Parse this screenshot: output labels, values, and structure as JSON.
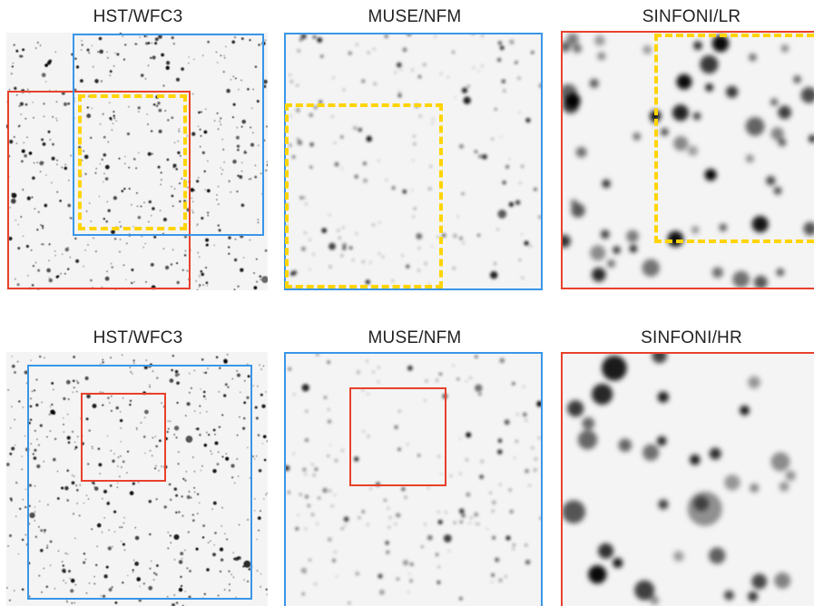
{
  "rows": [
    {
      "titles": [
        "HST/WFC3",
        "MUSE/NFM",
        "SINFONI/LR"
      ]
    },
    {
      "titles": [
        "HST/WFC3",
        "MUSE/NFM",
        "SINFONI/HR"
      ]
    }
  ],
  "colors": {
    "background": "#ffffff",
    "sky": "#f4f4f4",
    "stars": "#000000",
    "box_red": "#e8412c",
    "box_blue": "#3a96e8",
    "box_yellow_dashed": "#ffd400"
  }
}
